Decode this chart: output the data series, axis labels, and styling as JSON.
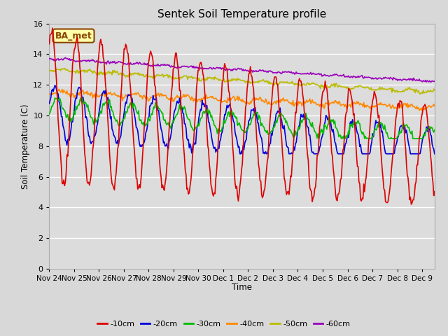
{
  "title": "Sentek Soil Temperature profile",
  "ylabel": "Soil Temperature (C)",
  "xlabel": "Time",
  "ylim": [
    0,
    16
  ],
  "fig_bg_color": "#d8d8d8",
  "plot_bg_color": "#dcdcdc",
  "annotation_text": "BA_met",
  "annotation_bg": "#ffffaa",
  "annotation_border": "#8b4500",
  "legend_entries": [
    "-10cm",
    "-20cm",
    "-30cm",
    "-40cm",
    "-50cm",
    "-60cm"
  ],
  "line_colors": [
    "#dd0000",
    "#0000dd",
    "#00bb00",
    "#ff8800",
    "#bbbb00",
    "#9900bb"
  ],
  "line_widths": [
    1.2,
    1.2,
    1.2,
    1.2,
    1.2,
    1.2
  ],
  "xtick_labels": [
    "Nov 24",
    "Nov 25",
    "Nov 26",
    "Nov 27",
    "Nov 28",
    "Nov 29",
    "Nov 30",
    "Dec 1",
    "Dec 2",
    "Dec 3",
    "Dec 4",
    "Dec 5",
    "Dec 6",
    "Dec 7",
    "Dec 8",
    "Dec 9"
  ],
  "ytick_labels": [
    "0",
    "2",
    "4",
    "6",
    "8",
    "10",
    "12",
    "14",
    "16"
  ],
  "ytick_vals": [
    0,
    2,
    4,
    6,
    8,
    10,
    12,
    14,
    16
  ],
  "num_points": 480,
  "days": 15.5
}
